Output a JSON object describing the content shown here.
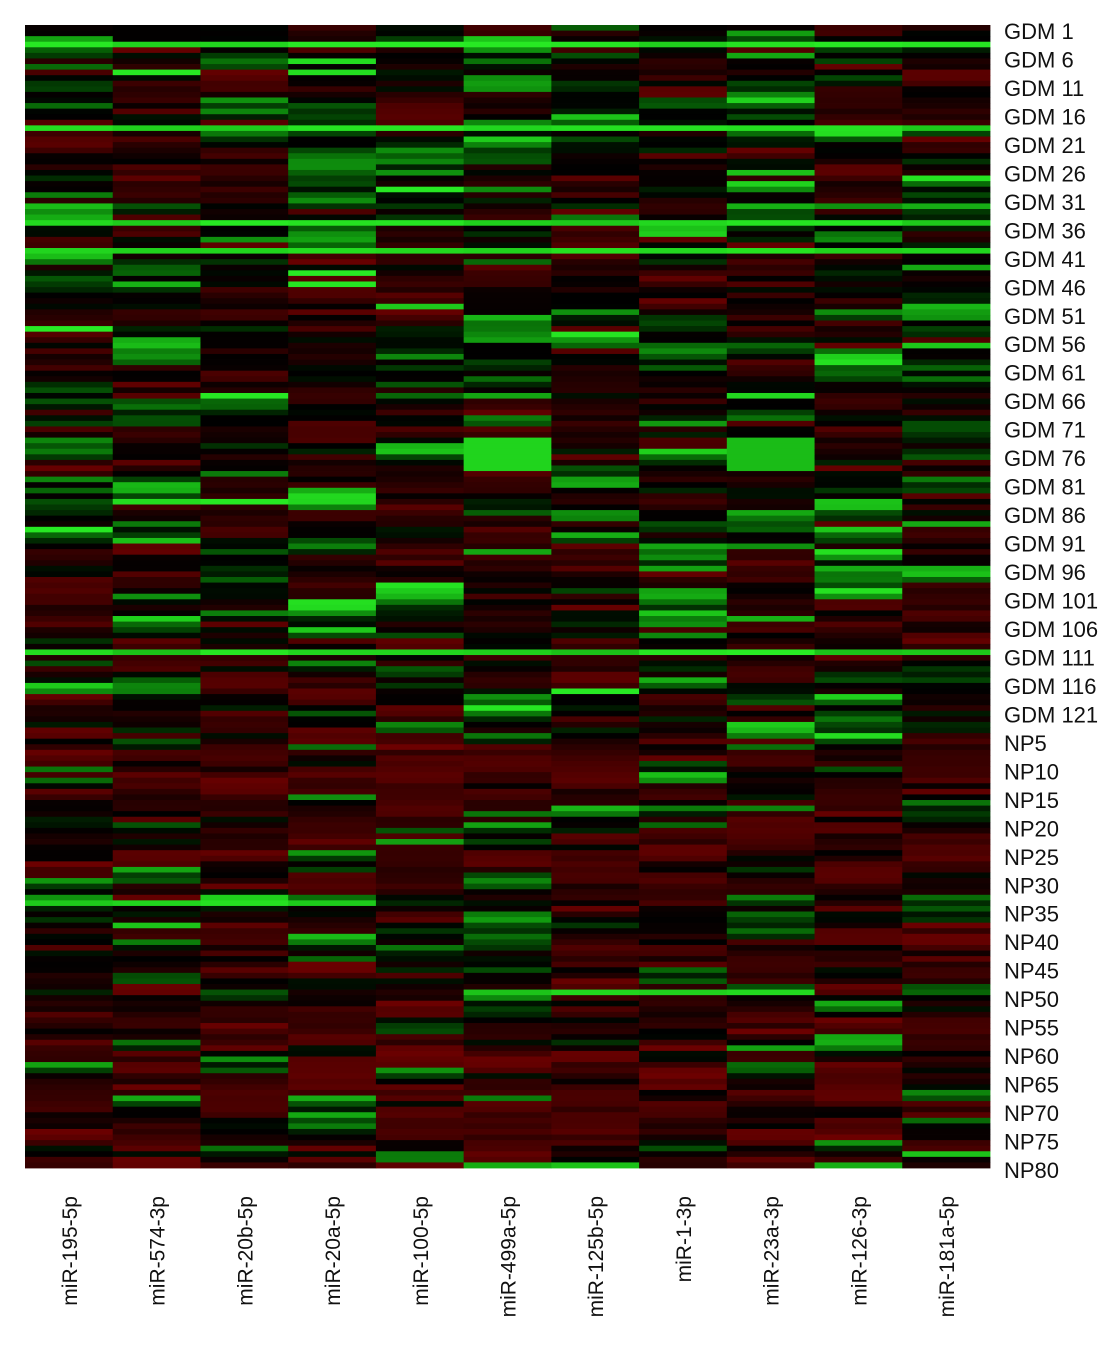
{
  "chart_data": {
    "type": "heatmap",
    "title": "",
    "xlabel": "",
    "ylabel": "",
    "color_scale": {
      "low": "#2be82b",
      "mid": "#000000",
      "high": "#7a0000"
    },
    "columns": [
      "miR-195-5p",
      "miR-574-3p",
      "miR-20b-5p",
      "miR-20a-5p",
      "miR-100-5p",
      "miR-499a-5p",
      "miR-125b-5p",
      "miR-1-3p",
      "miR-23a-3p",
      "miR-126-3p",
      "miR-181a-5p"
    ],
    "row_tick_labels": [
      "GDM 1",
      "GDM 6",
      "GDM 11",
      "GDM 16",
      "GDM 21",
      "GDM 26",
      "GDM 31",
      "GDM 36",
      "GDM 41",
      "GDM 46",
      "GDM 51",
      "GDM 56",
      "GDM 61",
      "GDM 66",
      "GDM 71",
      "GDM 76",
      "GDM 81",
      "GDM 86",
      "GDM 91",
      "GDM 96",
      "GDM 101",
      "GDM 106",
      "GDM 111",
      "GDM 116",
      "GDM 121",
      "NP5",
      "NP10",
      "NP15",
      "NP20",
      "NP25",
      "NP30",
      "NP35",
      "NP40",
      "NP45",
      "NP50",
      "NP55",
      "NP60",
      "NP65",
      "NP70",
      "NP75",
      "NP80"
    ],
    "n_rows": 205,
    "legend": "none",
    "grid": false
  }
}
